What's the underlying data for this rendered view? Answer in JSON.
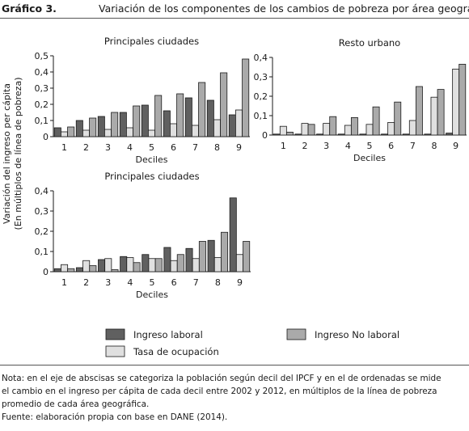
{
  "header": {
    "figure_label": "Gráfico 3.",
    "title": "Variación de los componentes de los cambios de pobreza por área geográfica"
  },
  "y_axis_label_line1": "Variación del ingreso per cápita",
  "y_axis_label_line2": "(En múltiplos de línea de pobreza)",
  "colors": {
    "ingreso_laboral": "#606060",
    "tasa_ocupacion": "#e0e0e0",
    "ingreso_no_laboral": "#aaaaaa",
    "bar_stroke": "#1a1a1a"
  },
  "legend": {
    "ingreso_laboral": "Ingreso laboral",
    "tasa_ocupacion": "Tasa de ocupación",
    "ingreso_no_laboral": "Ingreso No laboral"
  },
  "chart_data": [
    {
      "type": "bar",
      "title": "Principales ciudades",
      "xlabel": "Deciles",
      "categories": [
        "1",
        "2",
        "3",
        "4",
        "5",
        "6",
        "7",
        "8",
        "9"
      ],
      "ylim": [
        0,
        0.5
      ],
      "yticks": [
        "0",
        "0,1",
        "0,2",
        "0,3",
        "0,4",
        "0,5"
      ],
      "series": [
        {
          "name": "Ingreso laboral",
          "values": [
            0.055,
            0.1,
            0.125,
            0.15,
            0.195,
            0.16,
            0.24,
            0.225,
            0.135
          ]
        },
        {
          "name": "Tasa de ocupación",
          "values": [
            0.03,
            0.04,
            0.045,
            0.055,
            0.04,
            0.08,
            0.07,
            0.105,
            0.165
          ]
        },
        {
          "name": "Ingreso No laboral",
          "values": [
            0.06,
            0.115,
            0.15,
            0.19,
            0.255,
            0.265,
            0.335,
            0.395,
            0.48
          ]
        }
      ]
    },
    {
      "type": "bar",
      "title": "Resto urbano",
      "xlabel": "Deciles",
      "categories": [
        "1",
        "2",
        "3",
        "4",
        "5",
        "6",
        "7",
        "8",
        "9"
      ],
      "ylim": [
        0,
        0.4
      ],
      "yticks": [
        "0",
        "0,1",
        "0,2",
        "0,3",
        "0,4"
      ],
      "series": [
        {
          "name": "Ingreso laboral",
          "values": [
            0.005,
            0.005,
            0.005,
            0.005,
            0.005,
            0.005,
            0.005,
            0.005,
            0.01
          ]
        },
        {
          "name": "Tasa de ocupación",
          "values": [
            0.045,
            0.06,
            0.06,
            0.05,
            0.055,
            0.065,
            0.075,
            0.195,
            0.34
          ]
        },
        {
          "name": "Ingreso No laboral",
          "values": [
            0.015,
            0.055,
            0.095,
            0.09,
            0.145,
            0.17,
            0.25,
            0.235,
            0.365
          ]
        }
      ]
    },
    {
      "type": "bar",
      "title": "Principales ciudades",
      "xlabel": "Deciles",
      "categories": [
        "1",
        "2",
        "3",
        "4",
        "5",
        "6",
        "7",
        "8",
        "9"
      ],
      "ylim": [
        0,
        0.4
      ],
      "yticks": [
        "0",
        "0,1",
        "0,2",
        "0,3",
        "0,4"
      ],
      "series": [
        {
          "name": "Ingreso laboral",
          "values": [
            0.015,
            0.02,
            0.06,
            0.075,
            0.085,
            0.12,
            0.115,
            0.155,
            0.365
          ]
        },
        {
          "name": "Tasa de ocupación",
          "values": [
            0.035,
            0.055,
            0.065,
            0.07,
            0.065,
            0.055,
            0.065,
            0.07,
            0.085
          ]
        },
        {
          "name": "Ingreso No laboral",
          "values": [
            0.015,
            0.03,
            0.01,
            0.045,
            0.065,
            0.085,
            0.15,
            0.195,
            0.15
          ]
        }
      ]
    }
  ],
  "note": {
    "line1": "Nota: en el eje de abscisas se categoriza la población según decil del IPCF y en el de ordenadas se mide",
    "line2": "el cambio en el ingreso per cápita de cada decil entre 2002 y 2012, en múltiplos de la línea de pobreza",
    "line3": "promedio de cada área geográfica.",
    "line4": "Fuente: elaboración propia con base en DANE (2014)."
  }
}
